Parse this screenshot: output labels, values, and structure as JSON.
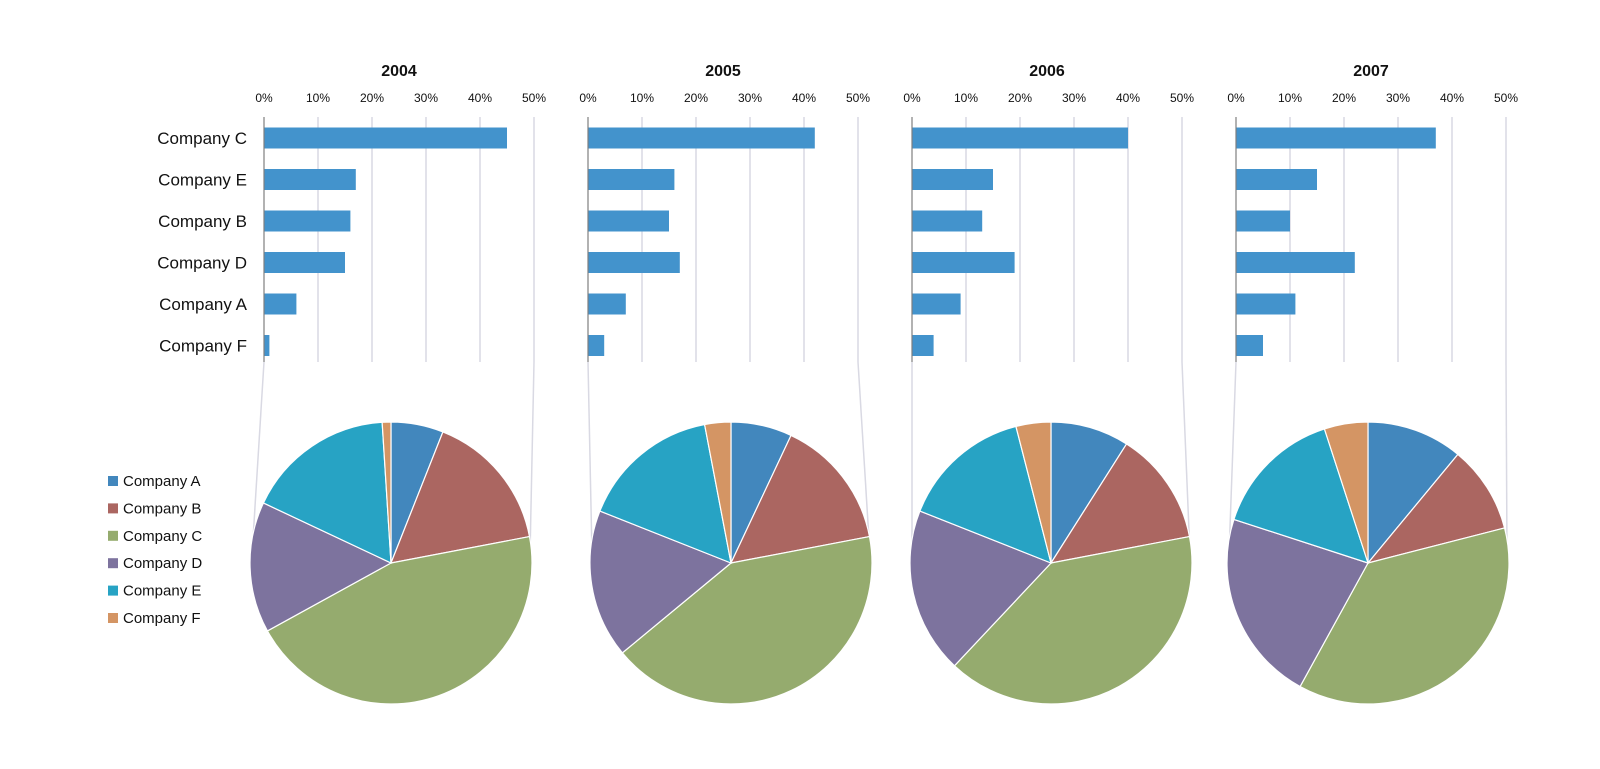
{
  "chart_data": [
    {
      "type": "bar",
      "title": "2004",
      "categories": [
        "Company C",
        "Company E",
        "Company B",
        "Company D",
        "Company A",
        "Company F"
      ],
      "values": [
        45,
        17,
        16,
        15,
        6,
        1
      ],
      "x_ticks": [
        "0%",
        "10%",
        "20%",
        "30%",
        "40%",
        "50%"
      ],
      "xlim": [
        0,
        50
      ],
      "grid": true
    },
    {
      "type": "bar",
      "title": "2005",
      "categories": [
        "Company C",
        "Company E",
        "Company B",
        "Company D",
        "Company A",
        "Company F"
      ],
      "values": [
        42,
        16,
        15,
        17,
        7,
        3
      ],
      "x_ticks": [
        "0%",
        "10%",
        "20%",
        "30%",
        "40%",
        "50%"
      ],
      "xlim": [
        0,
        50
      ],
      "grid": true
    },
    {
      "type": "bar",
      "title": "2006",
      "categories": [
        "Company C",
        "Company E",
        "Company B",
        "Company D",
        "Company A",
        "Company F"
      ],
      "values": [
        40,
        15,
        13,
        19,
        9,
        4
      ],
      "x_ticks": [
        "0%",
        "10%",
        "20%",
        "30%",
        "40%",
        "50%"
      ],
      "xlim": [
        0,
        50
      ],
      "grid": true
    },
    {
      "type": "bar",
      "title": "2007",
      "categories": [
        "Company C",
        "Company E",
        "Company B",
        "Company D",
        "Company A",
        "Company F"
      ],
      "values": [
        37,
        15,
        10,
        22,
        11,
        5
      ],
      "x_ticks": [
        "0%",
        "10%",
        "20%",
        "30%",
        "40%",
        "50%"
      ],
      "xlim": [
        0,
        50
      ],
      "grid": true
    },
    {
      "type": "pie",
      "year": "2004",
      "labels": [
        "Company A",
        "Company B",
        "Company C",
        "Company D",
        "Company E",
        "Company F"
      ],
      "values": [
        6,
        16,
        45,
        15,
        17,
        1
      ]
    },
    {
      "type": "pie",
      "year": "2005",
      "labels": [
        "Company A",
        "Company B",
        "Company C",
        "Company D",
        "Company E",
        "Company F"
      ],
      "values": [
        7,
        15,
        42,
        17,
        16,
        3
      ]
    },
    {
      "type": "pie",
      "year": "2006",
      "labels": [
        "Company A",
        "Company B",
        "Company C",
        "Company D",
        "Company E",
        "Company F"
      ],
      "values": [
        9,
        13,
        40,
        19,
        15,
        4
      ]
    },
    {
      "type": "pie",
      "year": "2007",
      "labels": [
        "Company A",
        "Company B",
        "Company C",
        "Company D",
        "Company E",
        "Company F"
      ],
      "values": [
        11,
        10,
        37,
        22,
        15,
        5
      ]
    }
  ],
  "legend": {
    "placement": "left",
    "items": [
      "Company A",
      "Company B",
      "Company C",
      "Company D",
      "Company E",
      "Company F"
    ]
  },
  "colors": {
    "bar": "#4393cc",
    "gridline": "#d9d9e3",
    "axis": "#7f7f7f",
    "Company A": "#4287bd",
    "Company B": "#ab6661",
    "Company C": "#95ab6e",
    "Company D": "#7d739e",
    "Company E": "#27a3c4",
    "Company F": "#d49564"
  }
}
